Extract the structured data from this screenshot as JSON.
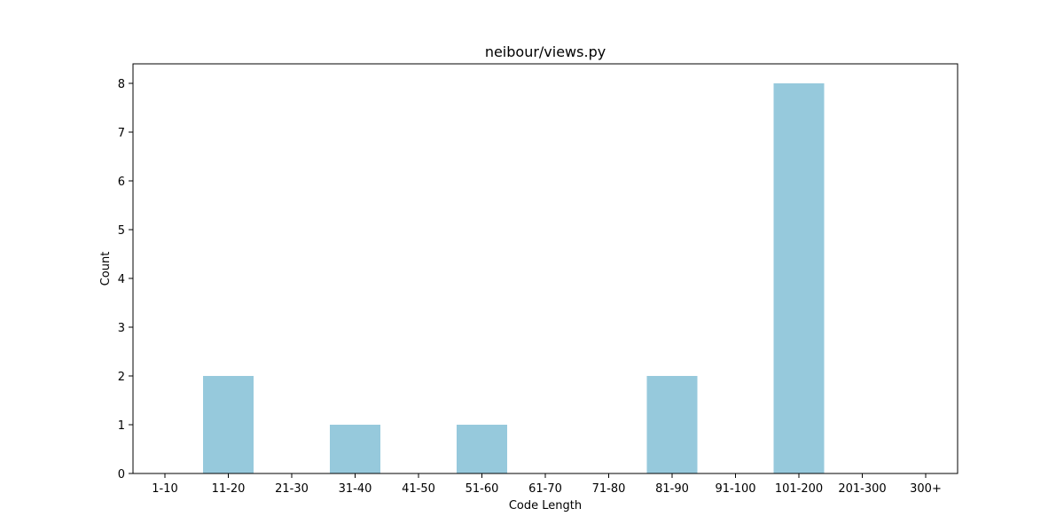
{
  "chart_data": {
    "type": "bar",
    "title": "neibour/views.py",
    "xlabel": "Code Length",
    "ylabel": "Count",
    "categories": [
      "1-10",
      "11-20",
      "21-30",
      "31-40",
      "41-50",
      "51-60",
      "61-70",
      "71-80",
      "81-90",
      "91-100",
      "101-200",
      "201-300",
      "300+"
    ],
    "values": [
      0,
      2,
      0,
      1,
      0,
      1,
      0,
      0,
      2,
      0,
      8,
      0,
      0
    ],
    "ylim": [
      0,
      8.4
    ],
    "yticks": [
      0,
      1,
      2,
      3,
      4,
      5,
      6,
      7,
      8
    ],
    "grid": false,
    "legend": "none",
    "colors": {
      "bar": "#96c9dc",
      "frame": "#000000",
      "background": "#ffffff"
    }
  }
}
